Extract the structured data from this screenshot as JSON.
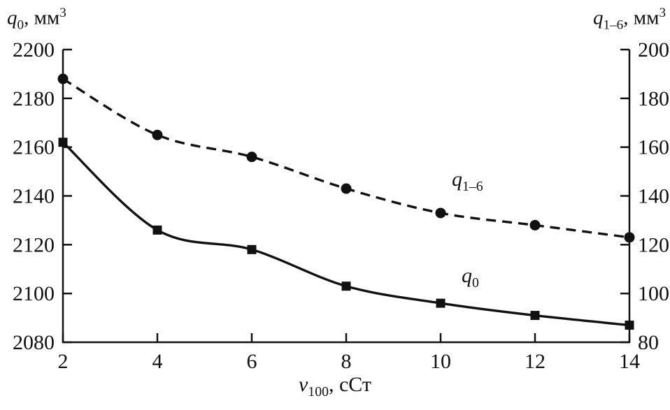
{
  "figure": {
    "background": "#ffffff",
    "ink": "#111111"
  },
  "chart_data": {
    "type": "line",
    "title": "",
    "grid": false,
    "legend_position": "labels-in-plot",
    "x": [
      2,
      4,
      6,
      8,
      10,
      12,
      14
    ],
    "x_range": [
      2,
      14
    ],
    "x_tick_labels": [
      "2",
      "4",
      "6",
      "8",
      "10",
      "12",
      "14"
    ],
    "axes": {
      "x": {
        "title": {
          "var": "v",
          "sub": "100",
          "rest": ", сСт"
        }
      },
      "left": {
        "range": [
          2080,
          2200
        ],
        "ticks": [
          2080,
          2100,
          2120,
          2140,
          2160,
          2180,
          2200
        ],
        "title": {
          "var": "q",
          "sub": "0",
          "rest": ", мм",
          "sup": "3"
        }
      },
      "right": {
        "range": [
          80,
          200
        ],
        "ticks": [
          80,
          100,
          120,
          140,
          160,
          180,
          200
        ],
        "title": {
          "var": "q",
          "sub": "1–6",
          "rest": ", мм",
          "sup": "3"
        }
      }
    },
    "series": [
      {
        "id": "q0",
        "axis": "left",
        "line": "solid",
        "marker": "square",
        "color": "#111111",
        "label": {
          "var": "q",
          "sub": "0"
        },
        "values": [
          2162,
          2126,
          2118,
          2103,
          2096,
          2091,
          2087
        ]
      },
      {
        "id": "q1-6",
        "axis": "right",
        "line": "dashed",
        "marker": "circle",
        "color": "#111111",
        "label": {
          "var": "q",
          "sub": "1–6"
        },
        "values": [
          188,
          165,
          156,
          143,
          133,
          128,
          123
        ]
      }
    ]
  }
}
